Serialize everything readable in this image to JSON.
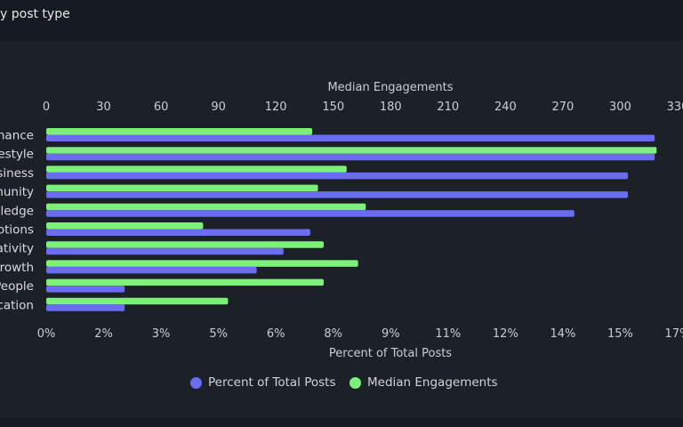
{
  "header": {
    "title": "y post type"
  },
  "colors": {
    "percent": "#6b6cf0",
    "median": "#7df07a",
    "background": "#1c2128"
  },
  "chart_data": {
    "type": "bar",
    "orientation": "horizontal",
    "categories": [
      "nance",
      "estyle",
      "siness",
      "munity",
      "vledge",
      "otions",
      "ativity",
      "rowth",
      "People",
      "cation"
    ],
    "series": [
      {
        "name": "Percent of Total Posts",
        "axis": "bottom",
        "values": [
          15.9,
          15.9,
          15.2,
          15.2,
          13.8,
          6.9,
          6.2,
          5.5,
          2.05,
          2.05
        ]
      },
      {
        "name": "Median Engagements",
        "axis": "top",
        "values": [
          139,
          319,
          157,
          142,
          167,
          82,
          145,
          163,
          145,
          95
        ]
      }
    ],
    "x_top": {
      "label": "Median Engagements",
      "range": [
        0,
        330
      ],
      "ticks": [
        "0",
        "30",
        "60",
        "90",
        "120",
        "150",
        "180",
        "210",
        "240",
        "270",
        "300",
        "330"
      ]
    },
    "x_bottom": {
      "label": "Percent of Total Posts",
      "range": [
        0,
        16.5
      ],
      "ticks": [
        "0%",
        "2%",
        "3%",
        "5%",
        "6%",
        "8%",
        "9%",
        "11%",
        "12%",
        "14%",
        "15%",
        "17%"
      ]
    },
    "legend": {
      "position": "bottom"
    },
    "grid": false
  }
}
